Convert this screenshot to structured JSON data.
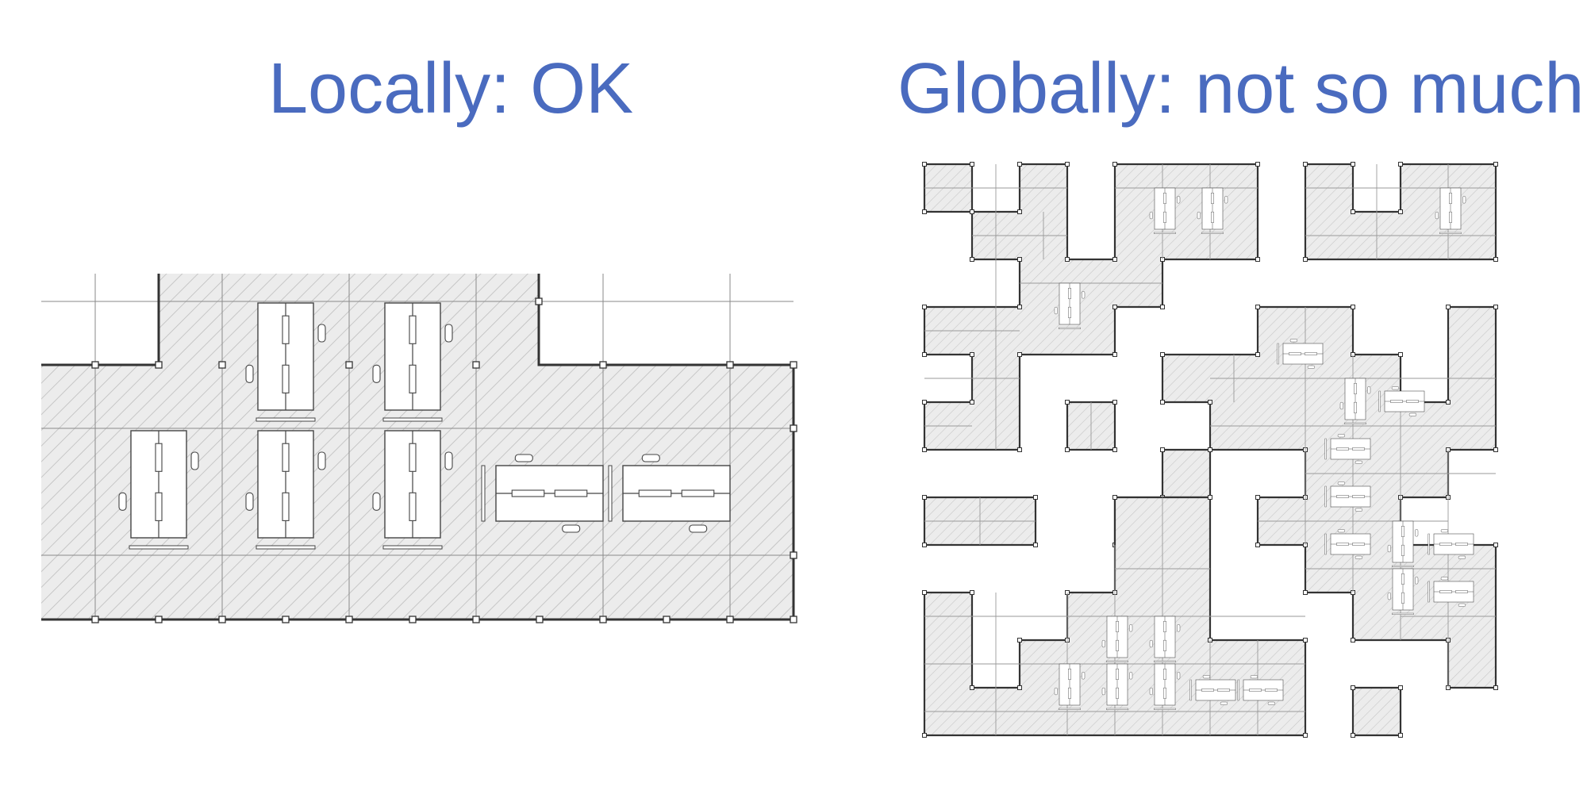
{
  "panels": {
    "left": {
      "title": "Locally: OK"
    },
    "right": {
      "title": "Globally: not so much..."
    }
  },
  "colors": {
    "title": "#4a6bbf",
    "floor_fill": "#ececec",
    "hatch": "#bdbdbd",
    "grid": "#8a8a8a",
    "wall": "#333333"
  }
}
